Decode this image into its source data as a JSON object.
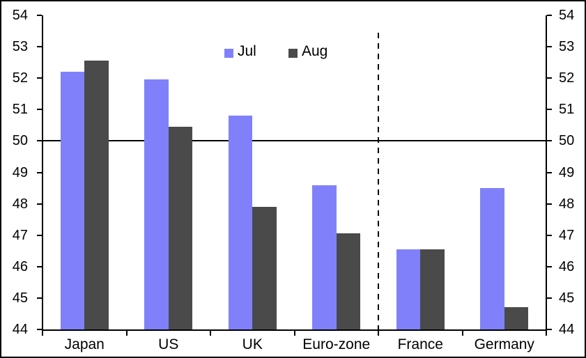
{
  "chart_data": {
    "type": "bar",
    "title": "",
    "xlabel": "",
    "ylabel": "",
    "categories": [
      "Japan",
      "US",
      "UK",
      "Euro-zone",
      "France",
      "Germany"
    ],
    "series": [
      {
        "name": "Jul",
        "color": "#8081fa",
        "values": [
          52.2,
          51.95,
          50.8,
          48.6,
          46.55,
          48.5
        ]
      },
      {
        "name": "Aug",
        "color": "#4a4a4a",
        "values": [
          52.55,
          50.45,
          47.9,
          47.05,
          46.55,
          44.7
        ]
      }
    ],
    "ylim": [
      44,
      54
    ],
    "ytick_step": 1,
    "yticks": [
      44,
      45,
      46,
      47,
      48,
      49,
      50,
      51,
      52,
      53,
      54
    ],
    "y_axis_sides": [
      "left",
      "right"
    ],
    "grid": false,
    "legend_position": "top-center",
    "reference_line_y": 50,
    "divider": {
      "style": "dashed",
      "between": [
        "Euro-zone",
        "France"
      ]
    },
    "axis_color": "#000000",
    "background_color": "#ffffff"
  },
  "legend": {
    "jul_label": "Jul",
    "aug_label": "Aug"
  }
}
